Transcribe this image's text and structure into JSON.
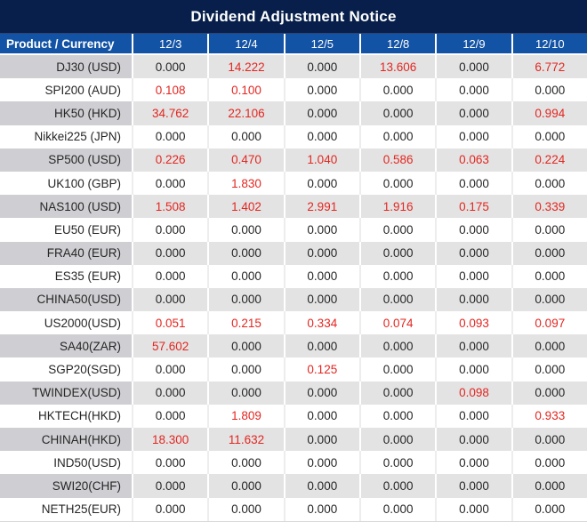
{
  "title_bar": {
    "title": "Dividend Adjustment Notice"
  },
  "table": {
    "product_header": "Product / Currency",
    "date_headers": [
      "12/3",
      "12/4",
      "12/5",
      "12/8",
      "12/9",
      "12/10"
    ],
    "rows": [
      {
        "product": "DJ30 (USD)",
        "values": [
          "0.000",
          "14.222",
          "0.000",
          "13.606",
          "0.000",
          "6.772"
        ]
      },
      {
        "product": "SPI200 (AUD)",
        "values": [
          "0.108",
          "0.100",
          "0.000",
          "0.000",
          "0.000",
          "0.000"
        ]
      },
      {
        "product": "HK50 (HKD)",
        "values": [
          "34.762",
          "22.106",
          "0.000",
          "0.000",
          "0.000",
          "0.994"
        ]
      },
      {
        "product": "Nikkei225 (JPN)",
        "values": [
          "0.000",
          "0.000",
          "0.000",
          "0.000",
          "0.000",
          "0.000"
        ]
      },
      {
        "product": "SP500 (USD)",
        "values": [
          "0.226",
          "0.470",
          "1.040",
          "0.586",
          "0.063",
          "0.224"
        ]
      },
      {
        "product": "UK100 (GBP)",
        "values": [
          "0.000",
          "1.830",
          "0.000",
          "0.000",
          "0.000",
          "0.000"
        ]
      },
      {
        "product": "NAS100 (USD)",
        "values": [
          "1.508",
          "1.402",
          "2.991",
          "1.916",
          "0.175",
          "0.339"
        ]
      },
      {
        "product": "EU50 (EUR)",
        "values": [
          "0.000",
          "0.000",
          "0.000",
          "0.000",
          "0.000",
          "0.000"
        ]
      },
      {
        "product": "FRA40 (EUR)",
        "values": [
          "0.000",
          "0.000",
          "0.000",
          "0.000",
          "0.000",
          "0.000"
        ]
      },
      {
        "product": "ES35 (EUR)",
        "values": [
          "0.000",
          "0.000",
          "0.000",
          "0.000",
          "0.000",
          "0.000"
        ]
      },
      {
        "product": "CHINA50(USD)",
        "values": [
          "0.000",
          "0.000",
          "0.000",
          "0.000",
          "0.000",
          "0.000"
        ]
      },
      {
        "product": "US2000(USD)",
        "values": [
          "0.051",
          "0.215",
          "0.334",
          "0.074",
          "0.093",
          "0.097"
        ]
      },
      {
        "product": "SA40(ZAR)",
        "values": [
          "57.602",
          "0.000",
          "0.000",
          "0.000",
          "0.000",
          "0.000"
        ]
      },
      {
        "product": "SGP20(SGD)",
        "values": [
          "0.000",
          "0.000",
          "0.125",
          "0.000",
          "0.000",
          "0.000"
        ]
      },
      {
        "product": "TWINDEX(USD)",
        "values": [
          "0.000",
          "0.000",
          "0.000",
          "0.000",
          "0.098",
          "0.000"
        ]
      },
      {
        "product": "HKTECH(HKD)",
        "values": [
          "0.000",
          "1.809",
          "0.000",
          "0.000",
          "0.000",
          "0.933"
        ]
      },
      {
        "product": "CHINAH(HKD)",
        "values": [
          "18.300",
          "11.632",
          "0.000",
          "0.000",
          "0.000",
          "0.000"
        ]
      },
      {
        "product": "IND50(USD)",
        "values": [
          "0.000",
          "0.000",
          "0.000",
          "0.000",
          "0.000",
          "0.000"
        ]
      },
      {
        "product": "SWI20(CHF)",
        "values": [
          "0.000",
          "0.000",
          "0.000",
          "0.000",
          "0.000",
          "0.000"
        ]
      },
      {
        "product": "NETH25(EUR)",
        "values": [
          "0.000",
          "0.000",
          "0.000",
          "0.000",
          "0.000",
          "0.000"
        ]
      }
    ]
  },
  "colors": {
    "title_bg": "#071f4a",
    "header_bg": "#1353a5",
    "row_alt_bg": "#e3e3e3",
    "row_alt_product_bg": "#cfcfd3",
    "highlight_value": "#e32620",
    "text": "#262626"
  },
  "chart_data": {
    "type": "table",
    "title": "Dividend Adjustment Notice",
    "columns": [
      "Product / Currency",
      "12/3",
      "12/4",
      "12/5",
      "12/8",
      "12/9",
      "12/10"
    ],
    "rows": [
      [
        "DJ30 (USD)",
        0.0,
        14.222,
        0.0,
        13.606,
        0.0,
        6.772
      ],
      [
        "SPI200 (AUD)",
        0.108,
        0.1,
        0.0,
        0.0,
        0.0,
        0.0
      ],
      [
        "HK50 (HKD)",
        34.762,
        22.106,
        0.0,
        0.0,
        0.0,
        0.994
      ],
      [
        "Nikkei225 (JPN)",
        0.0,
        0.0,
        0.0,
        0.0,
        0.0,
        0.0
      ],
      [
        "SP500 (USD)",
        0.226,
        0.47,
        1.04,
        0.586,
        0.063,
        0.224
      ],
      [
        "UK100 (GBP)",
        0.0,
        1.83,
        0.0,
        0.0,
        0.0,
        0.0
      ],
      [
        "NAS100 (USD)",
        1.508,
        1.402,
        2.991,
        1.916,
        0.175,
        0.339
      ],
      [
        "EU50 (EUR)",
        0.0,
        0.0,
        0.0,
        0.0,
        0.0,
        0.0
      ],
      [
        "FRA40 (EUR)",
        0.0,
        0.0,
        0.0,
        0.0,
        0.0,
        0.0
      ],
      [
        "ES35 (EUR)",
        0.0,
        0.0,
        0.0,
        0.0,
        0.0,
        0.0
      ],
      [
        "CHINA50(USD)",
        0.0,
        0.0,
        0.0,
        0.0,
        0.0,
        0.0
      ],
      [
        "US2000(USD)",
        0.051,
        0.215,
        0.334,
        0.074,
        0.093,
        0.097
      ],
      [
        "SA40(ZAR)",
        57.602,
        0.0,
        0.0,
        0.0,
        0.0,
        0.0
      ],
      [
        "SGP20(SGD)",
        0.0,
        0.0,
        0.125,
        0.0,
        0.0,
        0.0
      ],
      [
        "TWINDEX(USD)",
        0.0,
        0.0,
        0.0,
        0.0,
        0.098,
        0.0
      ],
      [
        "HKTECH(HKD)",
        0.0,
        1.809,
        0.0,
        0.0,
        0.0,
        0.933
      ],
      [
        "CHINAH(HKD)",
        18.3,
        11.632,
        0.0,
        0.0,
        0.0,
        0.0
      ],
      [
        "IND50(USD)",
        0.0,
        0.0,
        0.0,
        0.0,
        0.0,
        0.0
      ],
      [
        "SWI20(CHF)",
        0.0,
        0.0,
        0.0,
        0.0,
        0.0,
        0.0
      ],
      [
        "NETH25(EUR)",
        0.0,
        0.0,
        0.0,
        0.0,
        0.0,
        0.0
      ]
    ],
    "notes": "Non-zero dividend adjustment values are shown in red; zero values in black. Rows alternate gray/white starting with gray."
  }
}
